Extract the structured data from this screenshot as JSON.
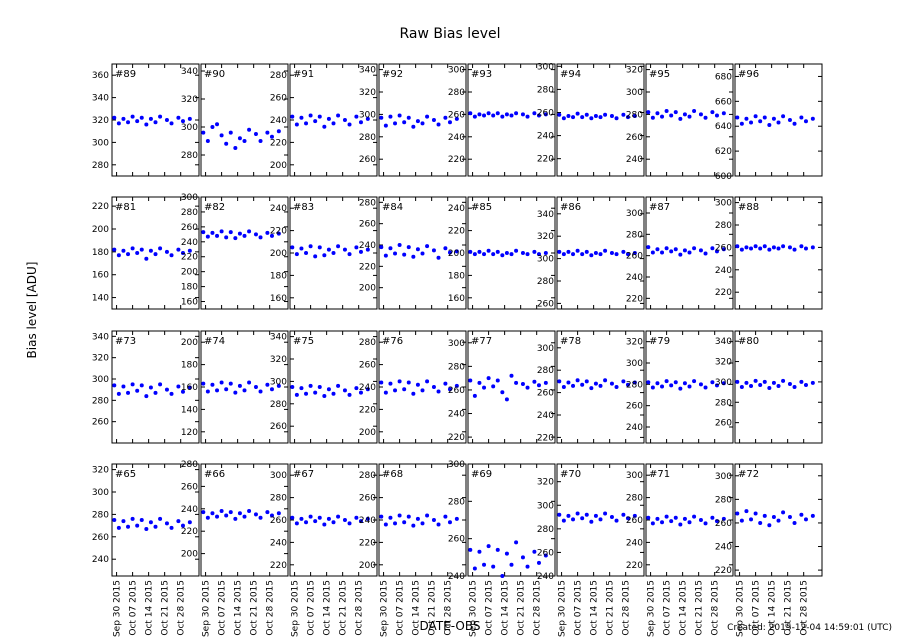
{
  "title": "Raw Bias level",
  "ylabel": "Bias level [ADU]",
  "xlabel": "DATE-OBS",
  "created": "Created: 2015-12-04 14:59:01 (UTC)",
  "x": [
    "2015-09-29",
    "2015-10-01",
    "2015-10-03",
    "2015-10-05",
    "2015-10-07",
    "2015-10-09",
    "2015-10-11",
    "2015-10-13",
    "2015-10-15",
    "2015-10-17",
    "2015-10-19",
    "2015-10-22",
    "2015-10-24",
    "2015-10-27",
    "2015-10-29",
    "2015-11-01"
  ],
  "xlim": [
    "2015-09-28",
    "2015-11-05"
  ],
  "xticks": [
    {
      "value": "2015-09-30",
      "label": "Sep 30 2015"
    },
    {
      "value": "2015-10-07",
      "label": "Oct 07 2015"
    },
    {
      "value": "2015-10-14",
      "label": "Oct 14 2015"
    },
    {
      "value": "2015-10-21",
      "label": "Oct 21 2015"
    },
    {
      "value": "2015-10-28",
      "label": "Oct 28 2015"
    }
  ],
  "chart_data": [
    {
      "type": "scatter",
      "title": "#89",
      "color": "#0000ff",
      "ylim": [
        270,
        370
      ],
      "yticks": [
        280,
        300,
        320,
        340,
        360
      ],
      "values": [
        322,
        317,
        321,
        318,
        323,
        319,
        322,
        316,
        321,
        318,
        323,
        320,
        317,
        322,
        319,
        321
      ]
    },
    {
      "type": "scatter",
      "title": "#90",
      "color": "#0000ff",
      "ylim": [
        265,
        345
      ],
      "yticks": [
        280,
        300,
        320,
        340
      ],
      "values": [
        296,
        290,
        300,
        302,
        294,
        288,
        296,
        285,
        292,
        290,
        298,
        295,
        290,
        296,
        293,
        297
      ]
    },
    {
      "type": "scatter",
      "title": "#91",
      "color": "#0000ff",
      "ylim": [
        190,
        290
      ],
      "yticks": [
        200,
        220,
        240,
        260,
        280
      ],
      "values": [
        243,
        236,
        242,
        237,
        244,
        239,
        243,
        234,
        241,
        237,
        244,
        240,
        236,
        243,
        238,
        241
      ]
    },
    {
      "type": "scatter",
      "title": "#92",
      "color": "#0000ff",
      "ylim": [
        245,
        345
      ],
      "yticks": [
        260,
        280,
        300,
        320,
        340
      ],
      "values": [
        297,
        290,
        298,
        292,
        299,
        293,
        297,
        289,
        294,
        292,
        298,
        295,
        291,
        297,
        293,
        296
      ]
    },
    {
      "type": "scatter",
      "title": "#93",
      "color": "#0000ff",
      "ylim": [
        205,
        305
      ],
      "yticks": [
        220,
        240,
        260,
        280,
        300
      ],
      "values": [
        261,
        258,
        260,
        259,
        261,
        259,
        261,
        258,
        260,
        259,
        261,
        260,
        258,
        261,
        259,
        260
      ]
    },
    {
      "type": "scatter",
      "title": "#94",
      "color": "#0000ff",
      "ylim": [
        205,
        302
      ],
      "yticks": [
        220,
        240,
        260,
        280,
        300
      ],
      "values": [
        258,
        255,
        257,
        256,
        259,
        256,
        258,
        255,
        257,
        256,
        258,
        257,
        255,
        258,
        256,
        257
      ]
    },
    {
      "type": "scatter",
      "title": "#95",
      "color": "#0000ff",
      "ylim": [
        225,
        325
      ],
      "yticks": [
        240,
        260,
        280,
        300,
        320
      ],
      "values": [
        282,
        277,
        281,
        278,
        283,
        279,
        282,
        276,
        280,
        278,
        283,
        280,
        277,
        282,
        279,
        281
      ]
    },
    {
      "type": "scatter",
      "title": "#96",
      "color": "#0000ff",
      "ylim": [
        600,
        690
      ],
      "yticks": [
        600,
        620,
        640,
        660,
        680
      ],
      "values": [
        647,
        642,
        646,
        643,
        648,
        644,
        647,
        641,
        646,
        643,
        648,
        645,
        642,
        647,
        644,
        646
      ]
    },
    {
      "type": "scatter",
      "title": "#81",
      "color": "#0000ff",
      "ylim": [
        130,
        228
      ],
      "yticks": [
        140,
        160,
        180,
        200,
        220
      ],
      "values": [
        182,
        177,
        181,
        178,
        183,
        179,
        182,
        174,
        181,
        178,
        183,
        180,
        177,
        182,
        179,
        181
      ]
    },
    {
      "type": "scatter",
      "title": "#82",
      "color": "#0000ff",
      "ylim": [
        150,
        300
      ],
      "yticks": [
        160,
        180,
        200,
        220,
        240,
        260,
        280,
        300
      ],
      "values": [
        253,
        247,
        252,
        248,
        254,
        246,
        253,
        245,
        251,
        248,
        254,
        250,
        246,
        252,
        248,
        251
      ]
    },
    {
      "type": "scatter",
      "title": "#83",
      "color": "#0000ff",
      "ylim": [
        150,
        250
      ],
      "yticks": [
        160,
        180,
        200,
        220,
        240
      ],
      "values": [
        205,
        199,
        204,
        200,
        206,
        197,
        205,
        198,
        203,
        200,
        206,
        203,
        199,
        205,
        201,
        203
      ]
    },
    {
      "type": "scatter",
      "title": "#84",
      "color": "#0000ff",
      "ylim": [
        180,
        285
      ],
      "yticks": [
        200,
        220,
        240,
        260,
        280
      ],
      "values": [
        238,
        230,
        237,
        232,
        240,
        231,
        238,
        229,
        236,
        232,
        239,
        235,
        228,
        237,
        233,
        234
      ]
    },
    {
      "type": "scatter",
      "title": "#85",
      "color": "#0000ff",
      "ylim": [
        150,
        250
      ],
      "yticks": [
        160,
        180,
        200,
        220,
        240
      ],
      "values": [
        201,
        199,
        201,
        199,
        202,
        199,
        201,
        198,
        200,
        199,
        202,
        200,
        199,
        201,
        199,
        200
      ]
    },
    {
      "type": "scatter",
      "title": "#86",
      "color": "#0000ff",
      "ylim": [
        255,
        355
      ],
      "yticks": [
        260,
        280,
        300,
        320,
        340
      ],
      "values": [
        306,
        304,
        306,
        304,
        307,
        304,
        306,
        303,
        305,
        304,
        307,
        305,
        304,
        306,
        304,
        305
      ]
    },
    {
      "type": "scatter",
      "title": "#87",
      "color": "#0000ff",
      "ylim": [
        210,
        315
      ],
      "yticks": [
        220,
        240,
        260,
        280,
        300
      ],
      "values": [
        268,
        263,
        266,
        263,
        267,
        264,
        266,
        261,
        265,
        263,
        267,
        265,
        262,
        267,
        264,
        266
      ]
    },
    {
      "type": "scatter",
      "title": "#88",
      "color": "#0000ff",
      "ylim": [
        205,
        305
      ],
      "yticks": [
        220,
        240,
        260,
        280,
        300
      ],
      "values": [
        261,
        258,
        260,
        259,
        261,
        259,
        261,
        258,
        260,
        259,
        261,
        260,
        258,
        261,
        259,
        260
      ]
    },
    {
      "type": "scatter",
      "title": "#73",
      "color": "#0000ff",
      "ylim": [
        240,
        345
      ],
      "yticks": [
        260,
        280,
        300,
        320,
        340
      ],
      "values": [
        294,
        286,
        293,
        287,
        295,
        289,
        294,
        284,
        292,
        287,
        295,
        290,
        286,
        293,
        288,
        292
      ]
    },
    {
      "type": "scatter",
      "title": "#74",
      "color": "#0000ff",
      "ylim": [
        110,
        210
      ],
      "yticks": [
        120,
        140,
        160,
        180,
        200
      ],
      "values": [
        163,
        156,
        162,
        157,
        164,
        158,
        163,
        155,
        161,
        157,
        164,
        160,
        156,
        162,
        158,
        161
      ]
    },
    {
      "type": "scatter",
      "title": "#75",
      "color": "#0000ff",
      "ylim": [
        245,
        345
      ],
      "yticks": [
        260,
        280,
        300,
        320,
        340
      ],
      "values": [
        295,
        288,
        294,
        289,
        296,
        290,
        295,
        287,
        293,
        289,
        296,
        292,
        288,
        294,
        290,
        293
      ]
    },
    {
      "type": "scatter",
      "title": "#76",
      "color": "#0000ff",
      "ylim": [
        190,
        290
      ],
      "yticks": [
        200,
        220,
        240,
        260,
        280
      ],
      "values": [
        244,
        235,
        243,
        237,
        245,
        238,
        244,
        234,
        242,
        237,
        245,
        240,
        236,
        243,
        238,
        241
      ]
    },
    {
      "type": "scatter",
      "title": "#77",
      "color": "#0000ff",
      "ylim": [
        215,
        310
      ],
      "yticks": [
        220,
        240,
        260,
        280,
        300
      ],
      "values": [
        268,
        255,
        266,
        262,
        270,
        263,
        268,
        258,
        252,
        272,
        266,
        265,
        262,
        267,
        264,
        266
      ]
    },
    {
      "type": "scatter",
      "title": "#78",
      "color": "#0000ff",
      "ylim": [
        215,
        315
      ],
      "yticks": [
        220,
        240,
        260,
        280,
        300
      ],
      "values": [
        270,
        265,
        269,
        266,
        271,
        267,
        270,
        264,
        268,
        266,
        271,
        268,
        265,
        270,
        267,
        269
      ]
    },
    {
      "type": "scatter",
      "title": "#79",
      "color": "#0000ff",
      "ylim": [
        225,
        330
      ],
      "yticks": [
        240,
        260,
        280,
        300,
        320
      ],
      "values": [
        282,
        277,
        281,
        278,
        283,
        279,
        282,
        276,
        281,
        278,
        283,
        280,
        277,
        282,
        279,
        281
      ]
    },
    {
      "type": "scatter",
      "title": "#80",
      "color": "#0000ff",
      "ylim": [
        240,
        350
      ],
      "yticks": [
        260,
        280,
        300,
        320,
        340
      ],
      "values": [
        300,
        295,
        299,
        296,
        301,
        297,
        300,
        294,
        299,
        296,
        301,
        298,
        295,
        300,
        297,
        299
      ]
    },
    {
      "type": "scatter",
      "title": "#65",
      "color": "#0000ff",
      "ylim": [
        225,
        325
      ],
      "yticks": [
        240,
        260,
        280,
        300,
        320
      ],
      "values": [
        275,
        268,
        274,
        269,
        276,
        270,
        275,
        267,
        273,
        269,
        276,
        272,
        268,
        274,
        270,
        273
      ]
    },
    {
      "type": "scatter",
      "title": "#66",
      "color": "#0000ff",
      "ylim": [
        180,
        280
      ],
      "yticks": [
        200,
        220,
        240,
        260,
        280
      ],
      "values": [
        237,
        232,
        236,
        233,
        238,
        234,
        237,
        231,
        236,
        233,
        238,
        235,
        232,
        237,
        234,
        236
      ]
    },
    {
      "type": "scatter",
      "title": "#67",
      "color": "#0000ff",
      "ylim": [
        210,
        310
      ],
      "yticks": [
        220,
        240,
        260,
        280,
        300
      ],
      "values": [
        262,
        257,
        261,
        258,
        263,
        259,
        262,
        256,
        261,
        258,
        263,
        260,
        257,
        262,
        259,
        261
      ]
    },
    {
      "type": "scatter",
      "title": "#68",
      "color": "#0000ff",
      "ylim": [
        190,
        290
      ],
      "yticks": [
        200,
        220,
        240,
        260,
        280
      ],
      "values": [
        243,
        236,
        242,
        237,
        244,
        238,
        243,
        235,
        241,
        237,
        244,
        240,
        236,
        243,
        238,
        241
      ]
    },
    {
      "type": "scatter",
      "title": "#69",
      "color": "#0000ff",
      "ylim": [
        240,
        300
      ],
      "yticks": [
        240,
        260,
        280,
        300
      ],
      "values": [
        254,
        244,
        253,
        246,
        256,
        245,
        254,
        240,
        252,
        246,
        258,
        250,
        245,
        253,
        247,
        251
      ]
    },
    {
      "type": "scatter",
      "title": "#70",
      "color": "#0000ff",
      "ylim": [
        240,
        335
      ],
      "yticks": [
        240,
        260,
        280,
        300,
        320
      ],
      "values": [
        292,
        287,
        291,
        288,
        293,
        289,
        292,
        286,
        291,
        288,
        293,
        290,
        287,
        292,
        289,
        291
      ]
    },
    {
      "type": "scatter",
      "title": "#71",
      "color": "#0000ff",
      "ylim": [
        210,
        310
      ],
      "yticks": [
        220,
        240,
        260,
        280,
        300
      ],
      "values": [
        262,
        257,
        261,
        258,
        263,
        259,
        262,
        256,
        261,
        258,
        263,
        260,
        257,
        262,
        259,
        261
      ]
    },
    {
      "type": "scatter",
      "title": "#72",
      "color": "#0000ff",
      "ylim": [
        215,
        310
      ],
      "yticks": [
        220,
        240,
        260,
        280,
        300
      ],
      "values": [
        268,
        262,
        270,
        263,
        268,
        260,
        266,
        258,
        265,
        262,
        269,
        265,
        260,
        267,
        263,
        266
      ]
    }
  ]
}
